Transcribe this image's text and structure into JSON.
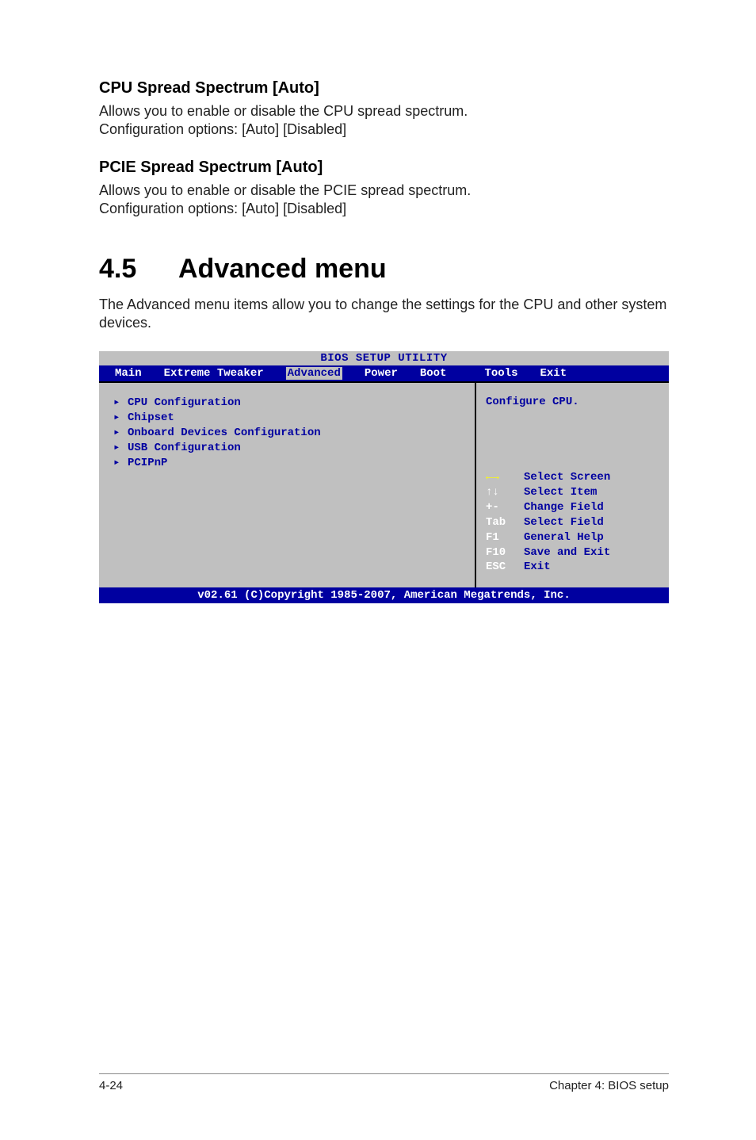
{
  "sections": [
    {
      "heading": "CPU Spread Spectrum [Auto]",
      "body": "Allows you to enable or disable the CPU spread spectrum.\nConfiguration options: [Auto] [Disabled]"
    },
    {
      "heading": "PCIE Spread Spectrum [Auto]",
      "body": "Allows you to enable or disable the PCIE spread spectrum.\nConfiguration options: [Auto] [Disabled]"
    }
  ],
  "main_heading": {
    "number": "4.5",
    "title": "Advanced menu"
  },
  "main_intro": "The Advanced menu items allow you to change the settings for the CPU and other system devices.",
  "bios": {
    "title": "BIOS SETUP UTILITY",
    "tabs": [
      "Main",
      "Extreme Tweaker",
      "Advanced",
      "Power",
      "Boot",
      "Tools",
      "Exit"
    ],
    "selected_tab_index": 2,
    "items": [
      "CPU Configuration",
      "Chipset",
      "Onboard Devices Configuration",
      "USB Configuration",
      "PCIPnP"
    ],
    "help_text": "Configure CPU.",
    "legend": [
      {
        "key": "←→",
        "key_class": "arrows",
        "label": "Select Screen"
      },
      {
        "key": "↑↓",
        "key_class": "",
        "label": "Select Item"
      },
      {
        "key": "+-",
        "key_class": "",
        "label": "Change Field"
      },
      {
        "key": "Tab",
        "key_class": "",
        "label": "Select Field"
      },
      {
        "key": "F1",
        "key_class": "",
        "label": "General Help"
      },
      {
        "key": "F10",
        "key_class": "",
        "label": "Save and Exit"
      },
      {
        "key": "ESC",
        "key_class": "",
        "label": "Exit"
      }
    ],
    "footer": "v02.61 (C)Copyright 1985-2007, American Megatrends, Inc.",
    "colors": {
      "panel_bg": "#c0c0c0",
      "bar_bg": "#0000a0",
      "bar_fg": "#ffffff",
      "accent": "#0000a0",
      "highlight": "#ffff00"
    }
  },
  "footer": {
    "left": "4-24",
    "right": "Chapter 4: BIOS setup"
  }
}
